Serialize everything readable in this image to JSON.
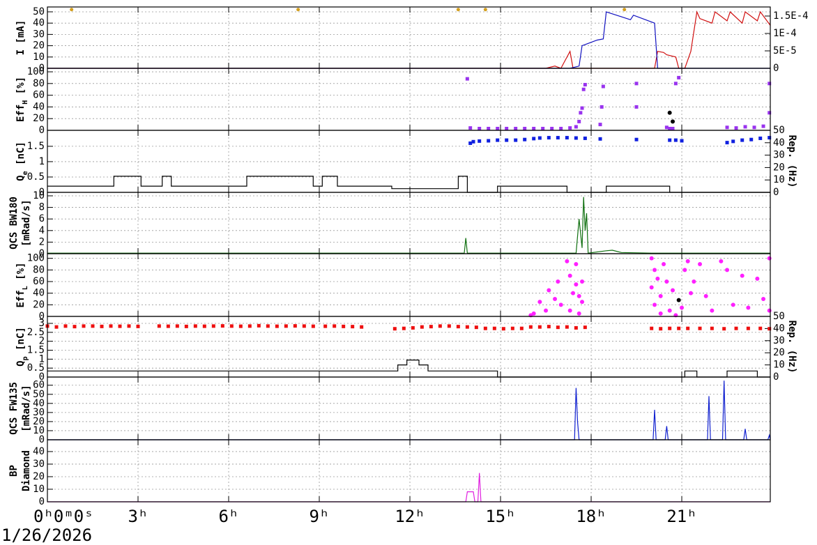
{
  "chart_data": [
    {
      "type": "line",
      "ylabel": [
        "I [mA]"
      ],
      "ylim": [
        0,
        54.3
      ],
      "yticks": [
        0,
        10,
        20,
        30,
        40,
        50
      ],
      "y2lim": [
        0,
        0.000176
      ],
      "y2ticks": [
        0,
        {
          "value": 5e-05,
          "label": "5E-5"
        },
        {
          "value": 0.0001,
          "label": "1E-4"
        },
        {
          "value": 0.00015,
          "label": "1.5E-4"
        }
      ],
      "grid": true,
      "series": [
        {
          "type": "line",
          "color": "#d01010",
          "x": [
            0,
            16.5,
            16.8,
            17,
            17.1,
            17.3,
            17.4,
            18,
            18.1,
            20.1,
            20.2,
            20.4,
            20.5,
            20.8,
            20.9,
            21.1,
            21.3,
            21.5,
            21.6,
            22,
            22.1,
            22.5,
            22.6,
            23,
            23.1,
            23.5,
            23.6,
            23.93
          ],
          "values": [
            0,
            0,
            2,
            0,
            5,
            15,
            0,
            0,
            0,
            0,
            15,
            14,
            12,
            10,
            0,
            0,
            15,
            50,
            44,
            40,
            50,
            42,
            50,
            40,
            50,
            42,
            50,
            38
          ]
        },
        {
          "type": "line",
          "color": "#1010c0",
          "x": [
            0,
            17.3,
            17.6,
            17.7,
            18.2,
            18.4,
            18.5,
            19.3,
            19.4,
            20.1,
            20.2,
            23.93
          ],
          "values": [
            0,
            0,
            2,
            20,
            25,
            26,
            50,
            43,
            47,
            40,
            0,
            0
          ]
        },
        {
          "type": "dot",
          "color": "#d4a020",
          "x": [
            0.8,
            8.3,
            13.6,
            14.5,
            19.1
          ],
          "values": [
            52,
            52,
            52,
            52,
            52
          ]
        }
      ]
    },
    {
      "type": "line",
      "ylabel": [
        "Eff",
        "H",
        " [%]"
      ],
      "ylabel_sub_index": 1,
      "ylim": [
        0,
        106
      ],
      "yticks": [
        0,
        20,
        40,
        60,
        80,
        100
      ],
      "grid": true,
      "series": [
        {
          "type": "square",
          "color": "#9933ee",
          "x": [
            13.9,
            14.0,
            14.3,
            14.6,
            14.9,
            15.2,
            15.5,
            15.8,
            16.1,
            16.4,
            16.7,
            17.0,
            17.3,
            17.5,
            17.6,
            17.65,
            17.7,
            17.75,
            17.8,
            18.3,
            18.35,
            18.4,
            19.5,
            19.5,
            20.5,
            20.6,
            20.7,
            20.8,
            20.9,
            22.5,
            22.8,
            23.1,
            23.4,
            23.7,
            23.9,
            23.9
          ],
          "values": [
            88,
            4,
            3,
            3,
            3,
            3,
            3,
            3,
            3,
            3,
            3,
            3,
            4,
            6,
            15,
            30,
            38,
            70,
            78,
            10,
            40,
            75,
            80,
            40,
            5,
            3,
            3,
            80,
            90,
            5,
            4,
            6,
            5,
            7,
            80,
            30
          ]
        },
        {
          "type": "circle",
          "color": "#000000",
          "x": [
            20.6,
            20.7
          ],
          "values": [
            30,
            15
          ]
        }
      ]
    },
    {
      "type": "line",
      "ylabel": [
        "Q",
        "e",
        " [nC]"
      ],
      "ylabel_sub_index": 1,
      "ylim": [
        0,
        2.02
      ],
      "yticks": [
        0,
        0.5,
        1,
        1.5
      ],
      "y2label": "Rep. (Hz)",
      "y2lim": [
        0,
        50
      ],
      "y2ticks": [
        0,
        10,
        20,
        30,
        40,
        50
      ],
      "grid": true,
      "series": [
        {
          "type": "square",
          "color": "#1020e0",
          "x": [
            14.0,
            14.1,
            14.3,
            14.6,
            14.9,
            15.2,
            15.5,
            15.8,
            16.1,
            16.3,
            16.6,
            16.9,
            17.2,
            17.5,
            17.8,
            18.3,
            19.5,
            20.6,
            20.8,
            21.0,
            22.5,
            22.7,
            23.0,
            23.3,
            23.6,
            23.9
          ],
          "values": [
            1.6,
            1.65,
            1.67,
            1.68,
            1.7,
            1.7,
            1.7,
            1.72,
            1.75,
            1.77,
            1.78,
            1.78,
            1.78,
            1.77,
            1.76,
            1.74,
            1.72,
            1.7,
            1.7,
            1.68,
            1.62,
            1.66,
            1.7,
            1.72,
            1.76,
            1.78
          ]
        },
        {
          "type": "line",
          "axis": "y2",
          "color": "#000000",
          "x": [
            0,
            2.2,
            2.2,
            3.1,
            3.1,
            3.8,
            3.8,
            4.1,
            4.1,
            6.6,
            6.6,
            8.8,
            8.8,
            9.1,
            9.1,
            9.6,
            9.6,
            11.4,
            11.4,
            13.6,
            13.6,
            13.9,
            13.9,
            14.9,
            14.9,
            17.2,
            17.2,
            18.5,
            18.5,
            20.6,
            20.6,
            23.93
          ],
          "values": [
            5,
            5,
            13,
            13,
            5,
            5,
            13,
            13,
            5,
            5,
            13,
            13,
            5,
            5,
            13,
            13,
            5,
            5,
            3,
            3,
            13,
            13,
            0,
            0,
            5,
            5,
            0,
            0,
            5,
            5,
            0,
            0
          ]
        }
      ]
    },
    {
      "type": "line",
      "ylabel": [
        "QCS BW180"
      ],
      "ylabel2": "[mRad/s]",
      "ylim": [
        0,
        10.6
      ],
      "yticks": [
        0,
        2,
        4,
        6,
        8,
        10
      ],
      "grid": true,
      "series": [
        {
          "type": "line",
          "color": "#107010",
          "x": [
            0,
            5,
            10,
            13.8,
            13.85,
            13.9,
            14,
            17.5,
            17.6,
            17.7,
            17.75,
            17.8,
            17.85,
            17.9,
            18.5,
            18.7,
            19,
            20,
            23.93
          ],
          "values": [
            0.1,
            0.1,
            0.1,
            0.1,
            2.7,
            0.1,
            0.1,
            0.1,
            6,
            1,
            9.8,
            4,
            7,
            0.1,
            0.5,
            0.6,
            0.2,
            0.1,
            0.1
          ]
        }
      ]
    },
    {
      "type": "line",
      "ylabel": [
        "Eff",
        "L",
        " [%]"
      ],
      "ylabel_sub_index": 1,
      "ylim": [
        0,
        108
      ],
      "yticks": [
        0,
        20,
        40,
        60,
        80,
        100
      ],
      "grid": true,
      "series": [
        {
          "type": "circle",
          "color": "#ff20ff",
          "x": [
            16.0,
            16.1,
            16.3,
            16.5,
            16.6,
            16.8,
            16.9,
            17.0,
            17.2,
            17.3,
            17.3,
            17.4,
            17.5,
            17.5,
            17.6,
            17.6,
            17.7,
            17.7,
            20.0,
            20.0,
            20.1,
            20.1,
            20.2,
            20.3,
            20.3,
            20.4,
            20.5,
            20.6,
            20.7,
            20.8,
            21.0,
            21.1,
            21.2,
            21.3,
            21.4,
            21.6,
            21.8,
            22.0,
            22.3,
            22.5,
            22.7,
            23.0,
            23.2,
            23.5,
            23.7,
            23.9,
            23.9
          ],
          "values": [
            2,
            5,
            25,
            10,
            45,
            30,
            60,
            20,
            95,
            70,
            10,
            40,
            90,
            55,
            5,
            35,
            25,
            60,
            100,
            50,
            80,
            20,
            65,
            5,
            35,
            90,
            60,
            10,
            45,
            2,
            15,
            80,
            95,
            40,
            60,
            90,
            35,
            10,
            95,
            80,
            20,
            70,
            15,
            65,
            30,
            100,
            10
          ]
        },
        {
          "type": "circle",
          "color": "#000000",
          "x": [
            20.9
          ],
          "values": [
            28
          ]
        }
      ]
    },
    {
      "type": "line",
      "ylabel": [
        "Q",
        "p",
        " [nC]"
      ],
      "ylabel_sub_index": 1,
      "ylim": [
        0,
        3.39
      ],
      "yticks": [
        0,
        0.5,
        1,
        1.5,
        2,
        2.5,
        3
      ],
      "y2label": "Rep. (Hz)",
      "y2lim": [
        0,
        50
      ],
      "y2ticks": [
        0,
        10,
        20,
        30,
        40,
        50
      ],
      "grid": true,
      "series": [
        {
          "type": "square",
          "color": "#ee1010",
          "x": [
            0,
            0.3,
            0.6,
            0.9,
            1.2,
            1.5,
            1.8,
            2.1,
            2.4,
            2.7,
            3.0,
            3.7,
            4.0,
            4.3,
            4.6,
            4.9,
            5.2,
            5.5,
            5.8,
            6.1,
            6.4,
            6.7,
            7.0,
            7.3,
            7.6,
            7.9,
            8.2,
            8.5,
            8.8,
            9.2,
            9.5,
            9.8,
            10.1,
            10.4,
            11.5,
            11.8,
            12.1,
            12.4,
            12.7,
            13.0,
            13.3,
            13.6,
            13.9,
            14.2,
            14.5,
            14.8,
            15.1,
            15.4,
            15.7,
            16.0,
            16.3,
            16.6,
            16.9,
            17.2,
            17.5,
            17.8,
            20.0,
            20.3,
            20.6,
            20.9,
            21.2,
            21.6,
            22.0,
            22.4,
            22.8,
            23.2,
            23.6,
            23.9
          ],
          "values": [
            2.85,
            2.8,
            2.85,
            2.82,
            2.85,
            2.85,
            2.83,
            2.85,
            2.84,
            2.85,
            2.83,
            2.85,
            2.84,
            2.85,
            2.83,
            2.85,
            2.84,
            2.85,
            2.86,
            2.85,
            2.84,
            2.85,
            2.87,
            2.85,
            2.84,
            2.85,
            2.86,
            2.85,
            2.84,
            2.84,
            2.85,
            2.83,
            2.82,
            2.8,
            2.7,
            2.72,
            2.75,
            2.8,
            2.82,
            2.85,
            2.85,
            2.82,
            2.8,
            2.78,
            2.72,
            2.72,
            2.7,
            2.72,
            2.72,
            2.8,
            2.8,
            2.82,
            2.78,
            2.8,
            2.75,
            2.78,
            2.72,
            2.7,
            2.72,
            2.72,
            2.72,
            2.72,
            2.72,
            2.7,
            2.72,
            2.72,
            2.72,
            2.7
          ]
        },
        {
          "type": "line",
          "axis": "y2",
          "color": "#000000",
          "x": [
            0,
            11.6,
            11.6,
            11.9,
            11.9,
            12.3,
            12.3,
            12.6,
            12.6,
            14.9,
            14.9,
            21.1,
            21.1,
            21.5,
            21.5,
            22.5,
            22.5,
            23.5,
            23.5,
            23.93
          ],
          "values": [
            5,
            5,
            10,
            10,
            14,
            14,
            10,
            10,
            5,
            5,
            0,
            0,
            5,
            5,
            0,
            0,
            5,
            5,
            0,
            0
          ]
        }
      ]
    },
    {
      "type": "line",
      "ylabel": [
        "QCS FW135"
      ],
      "ylabel2": "[mRad/s]",
      "ylim": [
        0,
        69
      ],
      "yticks": [
        0,
        10,
        20,
        30,
        40,
        50,
        60
      ],
      "grid": true,
      "series": [
        {
          "type": "line",
          "color": "#1020d0",
          "x": [
            0,
            17.45,
            17.5,
            17.55,
            17.6,
            20.05,
            20.1,
            20.15,
            20.45,
            20.5,
            20.55,
            21.85,
            21.9,
            21.95,
            22.35,
            22.4,
            22.45,
            23.05,
            23.1,
            23.15,
            23.85,
            23.9,
            23.93
          ],
          "values": [
            0,
            0,
            57,
            20,
            0,
            0,
            33,
            0,
            0,
            15,
            0,
            0,
            48,
            0,
            0,
            65,
            0,
            0,
            12,
            0,
            0,
            5,
            0
          ]
        }
      ]
    },
    {
      "type": "line",
      "ylabel": [
        "BP"
      ],
      "ylabel2": "Diamond",
      "ylim": [
        0,
        49.4
      ],
      "yticks": [
        0,
        10,
        20,
        30,
        40
      ],
      "grid": true,
      "xlim": [
        0,
        23.93
      ],
      "xticks": [
        {
          "value": 0,
          "label": "0ʰ0ᵐ0ˢ"
        },
        {
          "value": 3,
          "label": "3ʰ"
        },
        {
          "value": 6,
          "label": "6ʰ"
        },
        {
          "value": 9,
          "label": "9ʰ"
        },
        {
          "value": 12,
          "label": "12ʰ"
        },
        {
          "value": 15,
          "label": "15ʰ"
        },
        {
          "value": 18,
          "label": "18ʰ"
        },
        {
          "value": 21,
          "label": "21ʰ"
        }
      ],
      "date": "1/26/2026",
      "series": [
        {
          "type": "line",
          "color": "#e020e0",
          "x": [
            0,
            13.85,
            13.9,
            14.1,
            14.15,
            14.25,
            14.3,
            14.35,
            23.93
          ],
          "values": [
            0,
            0,
            8,
            8,
            0,
            0,
            23,
            0,
            0
          ]
        }
      ]
    }
  ]
}
